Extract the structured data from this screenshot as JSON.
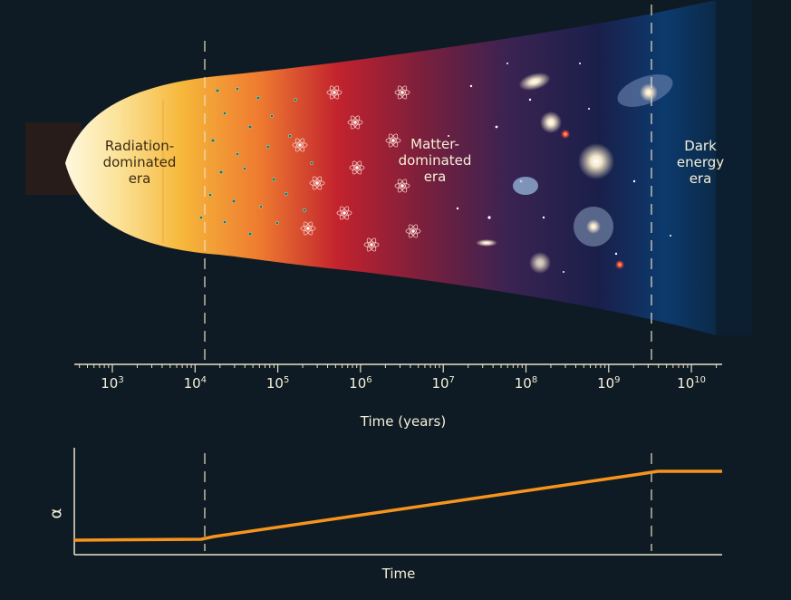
{
  "eras": {
    "radiation": "Radiation-\ndominated\nera",
    "matter": "Matter-\ndominated\nera",
    "dark": "Dark\nenergy\nera"
  },
  "time_axis": {
    "title": "Time (years)",
    "ticks": [
      {
        "base": "10",
        "exp": "3"
      },
      {
        "base": "10",
        "exp": "4"
      },
      {
        "base": "10",
        "exp": "5"
      },
      {
        "base": "10",
        "exp": "6"
      },
      {
        "base": "10",
        "exp": "7"
      },
      {
        "base": "10",
        "exp": "8"
      },
      {
        "base": "10",
        "exp": "9"
      },
      {
        "base": "10",
        "exp": "10"
      }
    ]
  },
  "alpha_plot": {
    "ylabel": "α",
    "xlabel": "Time"
  },
  "colors": {
    "background": "#0e1a24",
    "curve": "#f7941d",
    "text": "#f5f0d8"
  }
}
